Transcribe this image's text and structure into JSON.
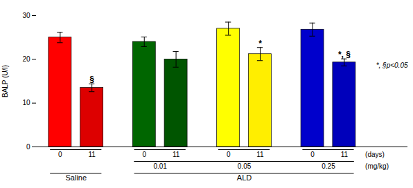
{
  "chart_data": {
    "type": "bar",
    "categories": [
      "0",
      "11",
      "0",
      "11",
      "0",
      "11",
      "0",
      "11"
    ],
    "values": [
      25.0,
      13.5,
      24.0,
      20.0,
      27.0,
      21.2,
      26.8,
      19.3
    ],
    "errors": [
      1.2,
      0.9,
      1.1,
      1.8,
      1.5,
      1.5,
      1.5,
      0.8
    ],
    "colors": [
      "#ff0000",
      "#dd0000",
      "#006600",
      "#005500",
      "#ffff00",
      "#ffee00",
      "#0000cc",
      "#0000bb"
    ],
    "bar_labels": [
      null,
      "§",
      null,
      null,
      null,
      "*",
      null,
      "*, §"
    ],
    "ylabel": "BALP (U/l)",
    "ylim": [
      0,
      30
    ],
    "yticks": [
      0,
      10,
      20,
      30
    ],
    "annotation": "*, §p<0.05",
    "x_unit": "(days)",
    "doses": [
      null,
      null,
      "0.01",
      "0.01",
      "0.05",
      "0.05",
      "0.25",
      "0.25"
    ],
    "dose_unit": "(mg/kg)",
    "groups": [
      "Saline",
      "Saline",
      "ALD",
      "ALD",
      "ALD",
      "ALD",
      "ALD",
      "ALD"
    ]
  }
}
